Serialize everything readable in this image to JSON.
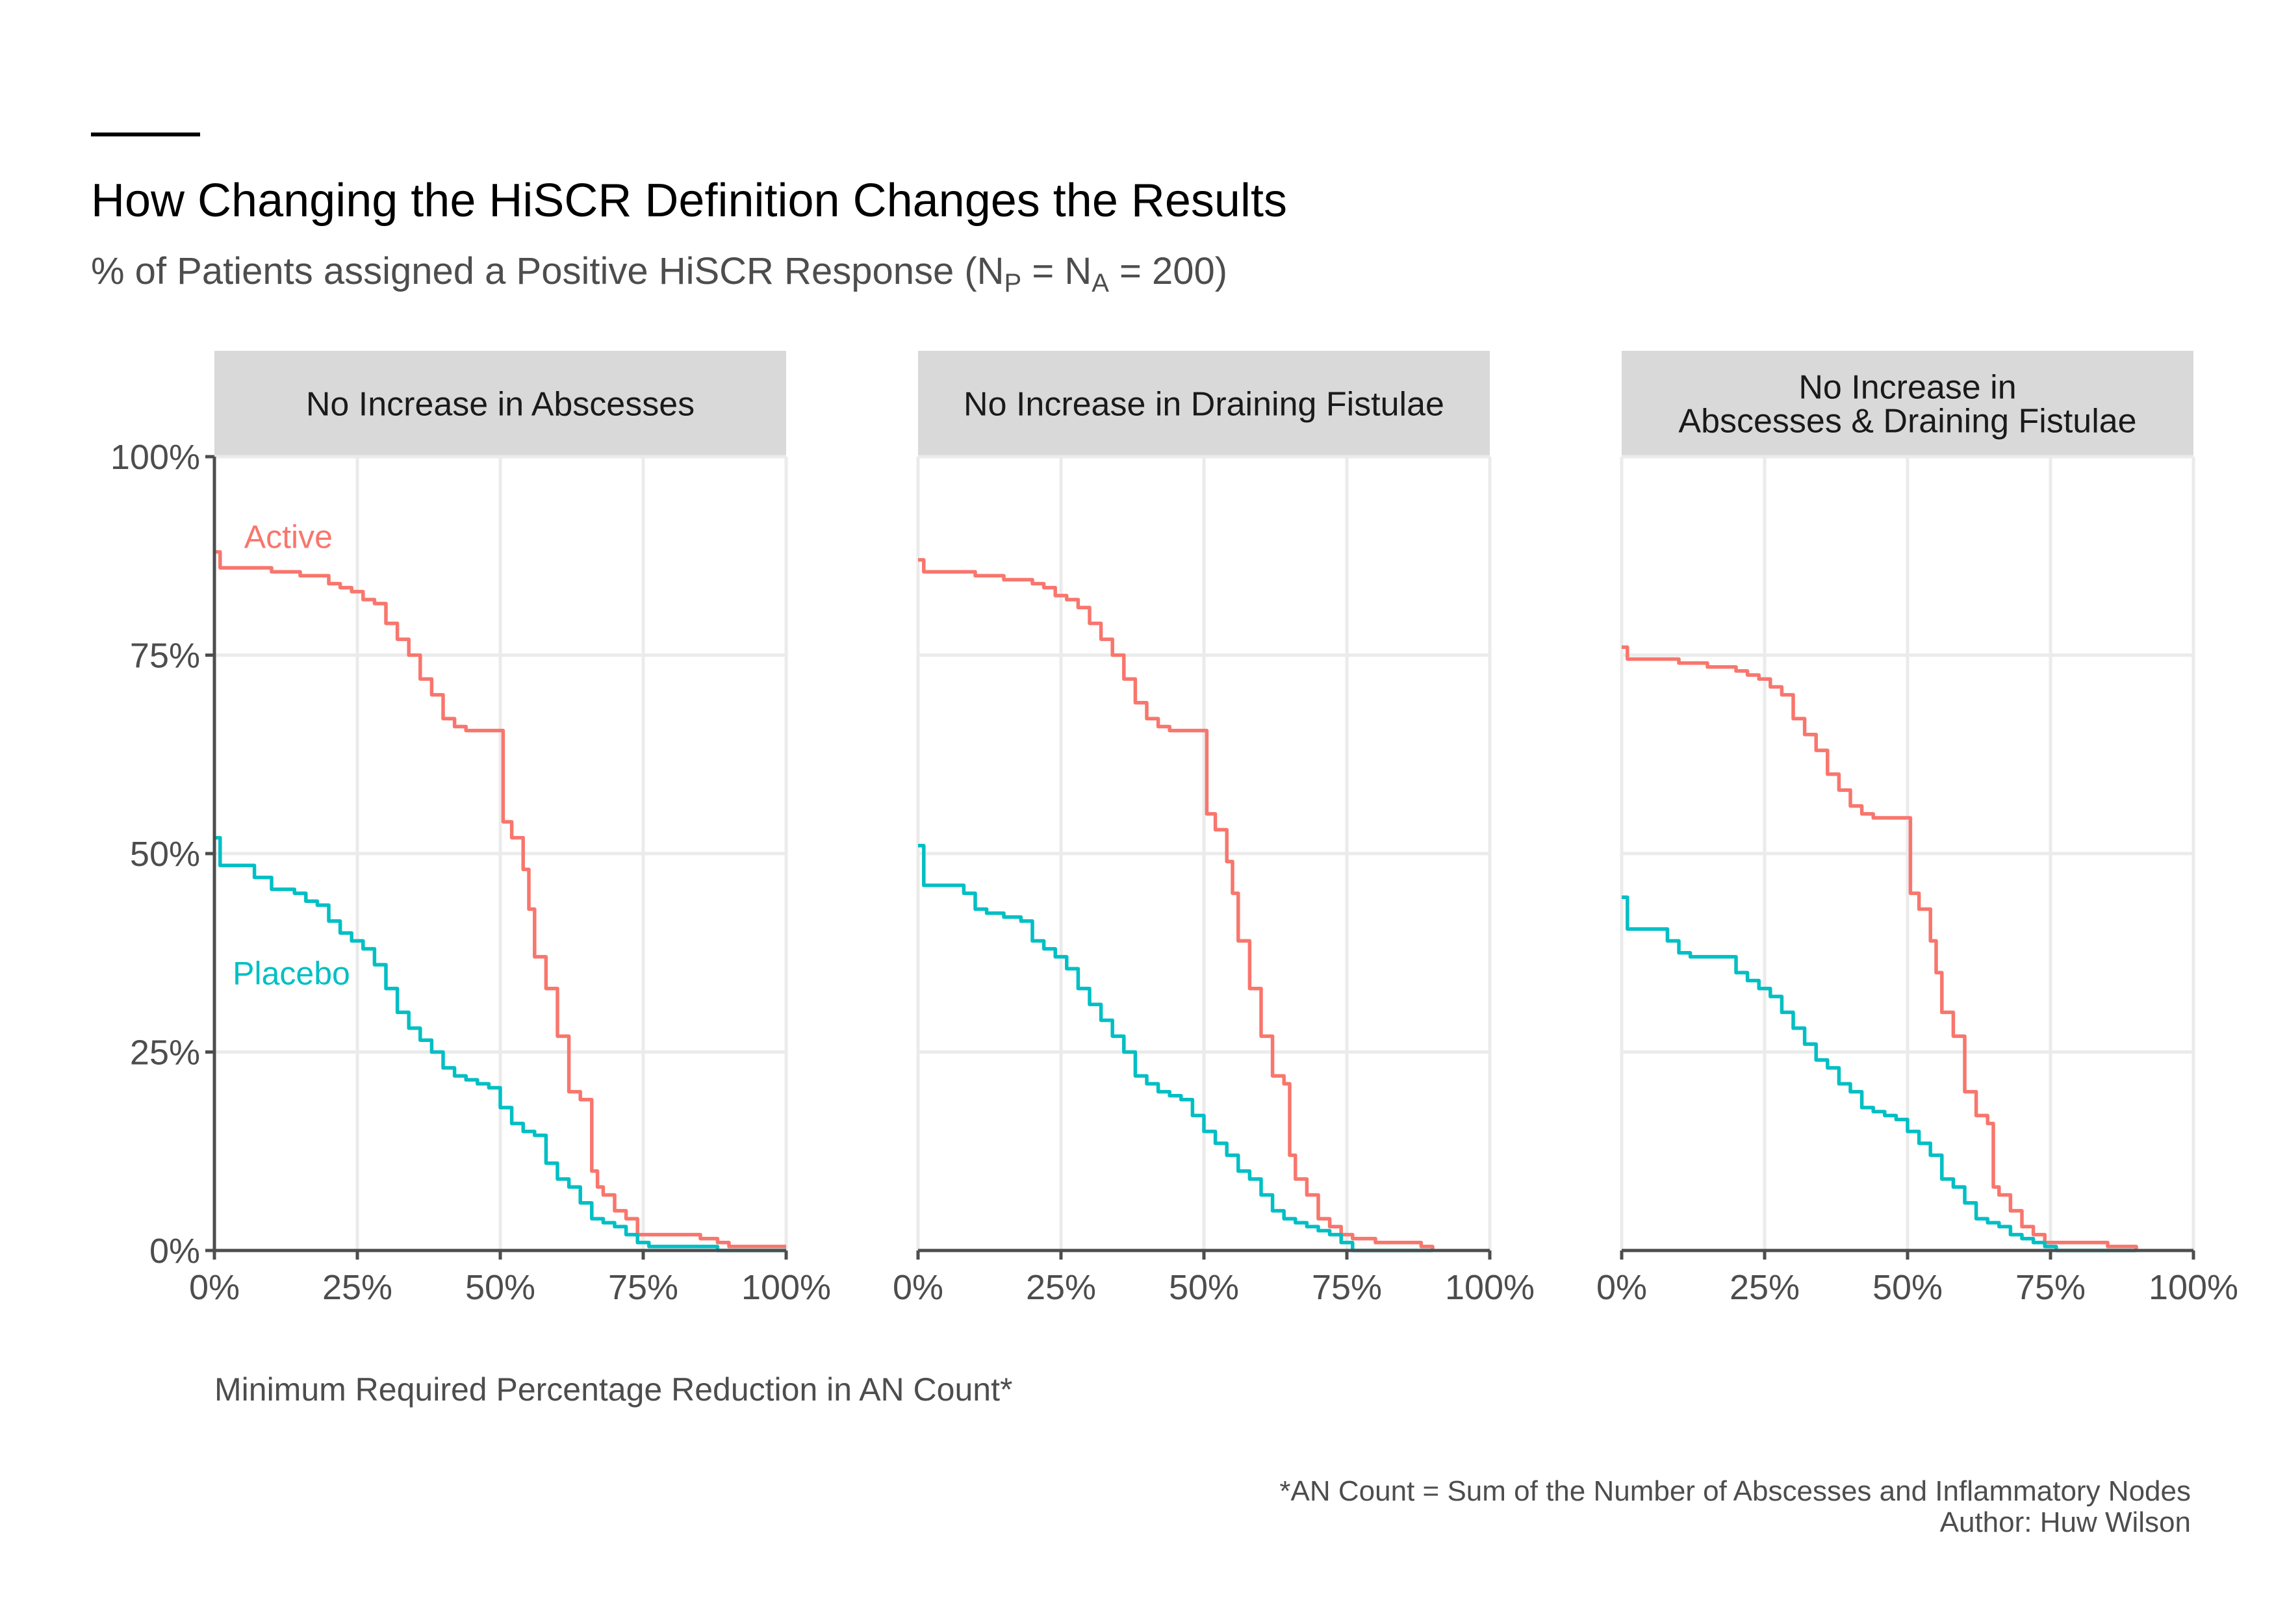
{
  "header": {
    "title": "How Changing the HiSCR Definition Changes the Results",
    "subtitle_prefix": "% of Patients assigned a Positive HiSCR Response (N",
    "subtitle_sub1": "P",
    "subtitle_mid": " = N",
    "subtitle_sub2": "A",
    "subtitle_suffix": " = 200)"
  },
  "xlabel": "Minimum Required Percentage Reduction in AN Count*",
  "caption": {
    "line1": "*AN Count = Sum of the Number of Abscesses and Inflammatory Nodes",
    "line2": "Author: Huw Wilson"
  },
  "colors": {
    "active": "#F8766D",
    "placebo": "#00BFC4",
    "strip": "#D9D9D9",
    "grid": "#EBEBEB",
    "axis": "#4d4d4d"
  },
  "chart_data": [
    {
      "type": "line",
      "panel": [
        "No Increase in Abscesses"
      ],
      "xlim": [
        0,
        100
      ],
      "ylim": [
        0,
        100
      ],
      "xticks": [
        "0%",
        "25%",
        "50%",
        "75%",
        "100%"
      ],
      "yticks": [
        "0%",
        "25%",
        "50%",
        "75%",
        "100%"
      ],
      "series": [
        {
          "name": "Active",
          "color": "#F8766D",
          "x": [
            0,
            1,
            5,
            8,
            10,
            12,
            15,
            18,
            20,
            22,
            24,
            26,
            28,
            30,
            32,
            34,
            36,
            38,
            40,
            42,
            44,
            46,
            48,
            50,
            50.5,
            52,
            54,
            55,
            56,
            58,
            60,
            62,
            64,
            66,
            67,
            68,
            70,
            72,
            74,
            76,
            80,
            85,
            88,
            90,
            95,
            100
          ],
          "y": [
            88,
            86,
            86,
            86,
            85.5,
            85.5,
            85,
            85,
            84,
            83.5,
            83,
            82,
            81.5,
            79,
            77,
            75,
            72,
            70,
            67,
            66,
            65.5,
            65.5,
            65.5,
            65.5,
            54,
            52,
            48,
            43,
            37,
            33,
            27,
            20,
            19,
            10,
            8,
            7,
            5,
            4,
            2,
            2,
            2,
            1.5,
            1,
            0.5,
            0.5,
            0.5
          ]
        },
        {
          "name": "Placebo",
          "color": "#00BFC4",
          "x": [
            0,
            1,
            5,
            7,
            10,
            14,
            16,
            18,
            20,
            22,
            24,
            26,
            28,
            30,
            32,
            34,
            36,
            38,
            40,
            42,
            44,
            46,
            48,
            50,
            52,
            54,
            56,
            58,
            60,
            62,
            64,
            66,
            68,
            70,
            72,
            74,
            76,
            78,
            82,
            88,
            90,
            100
          ],
          "y": [
            52,
            48.5,
            48.5,
            47,
            45.5,
            45,
            44,
            43.5,
            41.5,
            40,
            39,
            38,
            36,
            33,
            30,
            28,
            26.5,
            25,
            23,
            22,
            21.5,
            21,
            20.5,
            18,
            16,
            15,
            14.5,
            11,
            9,
            8,
            6,
            4,
            3.5,
            3,
            2,
            1,
            0.5,
            0.5,
            0.5,
            0,
            0,
            0
          ]
        }
      ]
    },
    {
      "type": "line",
      "panel": [
        "No Increase in Draining Fistulae"
      ],
      "xlim": [
        0,
        100
      ],
      "ylim": [
        0,
        100
      ],
      "xticks": [
        "0%",
        "25%",
        "50%",
        "75%",
        "100%"
      ],
      "yticks": [
        "0%",
        "25%",
        "50%",
        "75%",
        "100%"
      ],
      "series": [
        {
          "name": "Active",
          "color": "#F8766D",
          "x": [
            0,
            1,
            5,
            8,
            10,
            12,
            15,
            18,
            20,
            22,
            24,
            26,
            28,
            30,
            32,
            34,
            36,
            38,
            40,
            42,
            44,
            46,
            48,
            50,
            50.5,
            52,
            54,
            55,
            56,
            58,
            60,
            62,
            64,
            65,
            66,
            68,
            70,
            72,
            74,
            76,
            80,
            85,
            88,
            90
          ],
          "y": [
            87,
            85.5,
            85.5,
            85.5,
            85,
            85,
            84.5,
            84.5,
            84,
            83.5,
            82.5,
            82,
            81,
            79,
            77,
            75,
            72,
            69,
            67,
            66,
            65.5,
            65.5,
            65.5,
            65.5,
            55,
            53,
            49,
            45,
            39,
            33,
            27,
            22,
            21,
            12,
            9,
            7,
            4,
            3,
            2,
            1.5,
            1,
            1,
            0.5,
            0
          ]
        },
        {
          "name": "Placebo",
          "color": "#00BFC4",
          "x": [
            0,
            1,
            5,
            8,
            10,
            12,
            15,
            18,
            20,
            22,
            24,
            26,
            28,
            30,
            32,
            34,
            36,
            38,
            40,
            42,
            44,
            46,
            48,
            50,
            52,
            54,
            56,
            58,
            60,
            62,
            64,
            66,
            68,
            70,
            72,
            74,
            76,
            78,
            85,
            90
          ],
          "y": [
            51,
            46,
            46,
            45,
            43,
            42.5,
            42,
            41.5,
            39,
            38,
            37,
            35.5,
            33,
            31,
            29,
            27,
            25,
            22,
            21,
            20,
            19.5,
            19,
            17,
            15,
            13.5,
            12,
            10,
            9,
            7,
            5,
            4,
            3.5,
            3,
            2.5,
            2,
            1,
            0,
            0,
            0,
            0
          ]
        }
      ]
    },
    {
      "type": "line",
      "panel": [
        "No Increase in",
        "Abscesses & Draining Fistulae"
      ],
      "xlim": [
        0,
        100
      ],
      "ylim": [
        0,
        100
      ],
      "xticks": [
        "0%",
        "25%",
        "50%",
        "75%",
        "100%"
      ],
      "yticks": [
        "0%",
        "25%",
        "50%",
        "75%",
        "100%"
      ],
      "series": [
        {
          "name": "Active",
          "color": "#F8766D",
          "x": [
            0,
            1,
            5,
            8,
            10,
            12,
            15,
            18,
            20,
            22,
            24,
            26,
            28,
            30,
            32,
            34,
            36,
            38,
            40,
            42,
            44,
            46,
            48,
            50,
            50.5,
            52,
            54,
            55,
            56,
            58,
            60,
            62,
            64,
            65,
            66,
            68,
            70,
            72,
            74,
            76,
            80,
            85,
            88,
            90
          ],
          "y": [
            76,
            74.5,
            74.5,
            74.5,
            74,
            74,
            73.5,
            73.5,
            73,
            72.5,
            72,
            71,
            70,
            67,
            65,
            63,
            60,
            58,
            56,
            55,
            54.5,
            54.5,
            54.5,
            54.5,
            45,
            43,
            39,
            35,
            30,
            27,
            20,
            17,
            16,
            8,
            7,
            5,
            3,
            2,
            1,
            1,
            1,
            0.5,
            0.5,
            0
          ]
        },
        {
          "name": "Placebo",
          "color": "#00BFC4",
          "x": [
            0,
            1,
            5,
            8,
            10,
            12,
            15,
            18,
            20,
            22,
            24,
            26,
            28,
            30,
            32,
            34,
            36,
            38,
            40,
            42,
            44,
            46,
            48,
            50,
            52,
            54,
            56,
            58,
            60,
            62,
            64,
            66,
            68,
            70,
            72,
            74,
            76,
            78,
            85,
            90
          ],
          "y": [
            44.5,
            40.5,
            40.5,
            39,
            37.5,
            37,
            37,
            37,
            35,
            34,
            33,
            32,
            30,
            28,
            26,
            24,
            23,
            21,
            20,
            18,
            17.5,
            17,
            16.5,
            15,
            13.5,
            12,
            9,
            8,
            6,
            4,
            3.5,
            3,
            2,
            1.5,
            1,
            0.5,
            0,
            0,
            0,
            0
          ]
        }
      ]
    }
  ],
  "series_labels": {
    "active": "Active",
    "placebo": "Placebo"
  }
}
